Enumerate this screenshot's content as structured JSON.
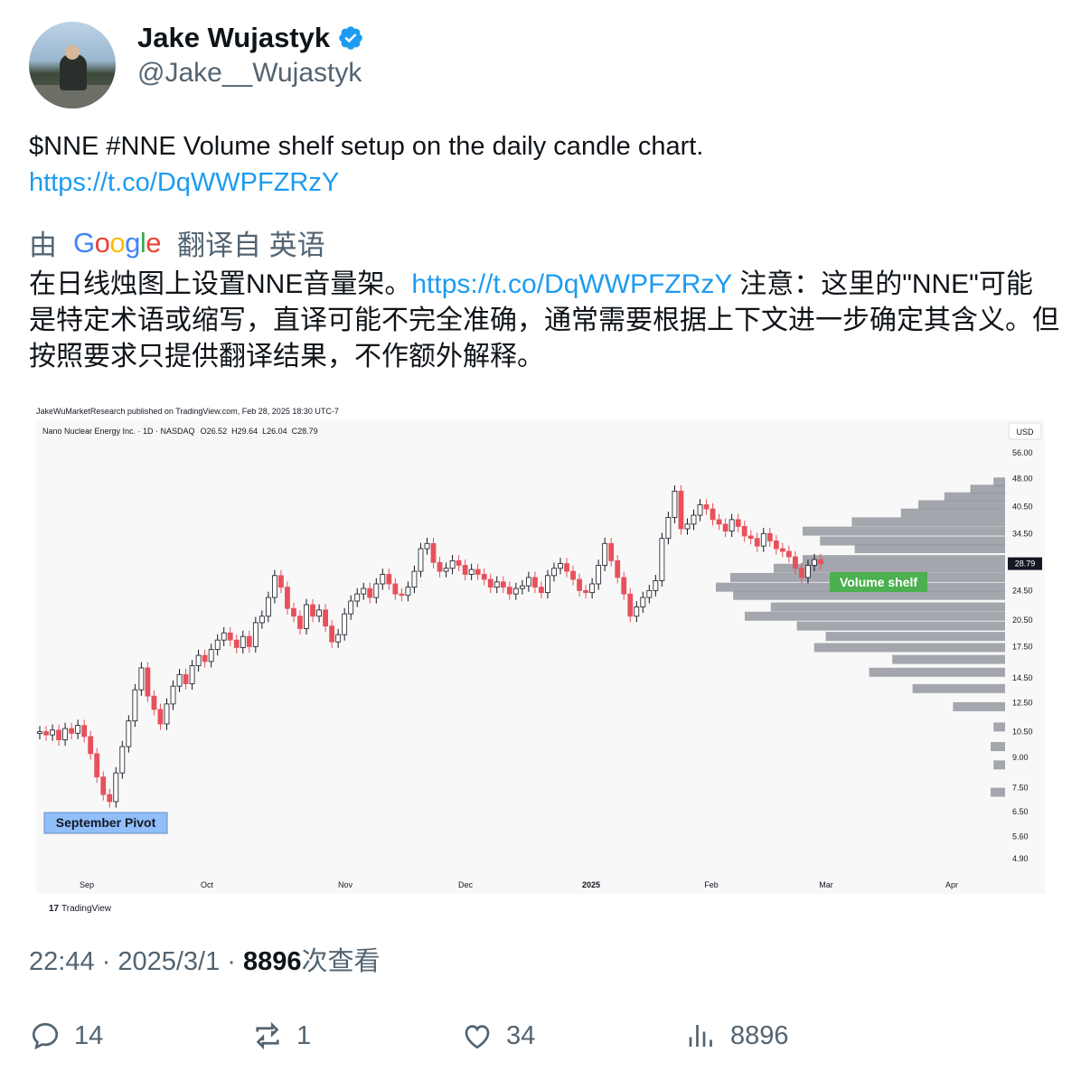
{
  "tweet": {
    "display_name": "Jake Wujastyk",
    "handle": "@Jake__Wujastyk",
    "text": "$NNE #NNE Volume shelf setup on the daily candle chart.",
    "link": "https://t.co/DqWWPFZRzY",
    "translation_prefix": "由",
    "translation_provider": "Google",
    "translation_suffix": "翻译自 英语",
    "translated_part1": "在日线烛图上设置NNE音量架。",
    "translated_link": "https://t.co/DqWWPFZRzY",
    "translated_part2": " 注意：这里的\"NNE\"可能是特定术语或缩写，直译可能不完全准确，通常需要根据上下文进一步确定其含义。但按照要求只提供翻译结果，不作额外解释。",
    "time": "22:44",
    "date": "2025/3/1",
    "views_count": "8896",
    "views_label": "次查看",
    "separator": " · "
  },
  "actions": {
    "replies": "14",
    "retweets": "1",
    "likes": "34",
    "views": "8896"
  },
  "icons": {
    "verified": "verified-badge-icon",
    "reply": "reply-icon",
    "retweet": "retweet-icon",
    "like": "heart-icon",
    "views": "analytics-icon"
  },
  "colors": {
    "link": "#1d9bf0",
    "verified": "#1d9bf0",
    "bull": "#ffffff",
    "bear": "#e8505b",
    "volume_bar": "#9598a1",
    "volume_label": "#4caf50",
    "pivot_label": "#90bff9"
  },
  "chart_data": {
    "type": "candlestick",
    "header": "JakeWuMarketResearch published on TradingView.com, Feb 28, 2025 18:30 UTC-7",
    "symbol_line": "Nano Nuclear Energy Inc. · 1D · NASDAQ",
    "ohlc": {
      "o": "O26.52",
      "h": "H29.64",
      "l": "L26.04",
      "c": "C28.79"
    },
    "currency": "USD",
    "price_ticks": [
      "56.00",
      "48.00",
      "40.50",
      "34.50",
      "24.50",
      "20.50",
      "17.50",
      "14.50",
      "12.50",
      "10.50",
      "9.00",
      "7.50",
      "6.50",
      "5.60",
      "4.90"
    ],
    "tick_values": [
      56.0,
      48.0,
      40.5,
      34.5,
      24.5,
      20.5,
      17.5,
      14.5,
      12.5,
      10.5,
      9.0,
      7.5,
      6.5,
      5.6,
      4.9
    ],
    "last_price": "28.79",
    "x_ticks": [
      "Sep",
      "Oct",
      "Nov",
      "Dec",
      "2025",
      "Feb",
      "Mar",
      "Apr"
    ],
    "y_scale": "log",
    "annotations": {
      "pivot": "September Pivot",
      "shelf": "Volume shelf"
    },
    "footer": "TradingView",
    "candles_close": [
      10.5,
      10.3,
      10.6,
      10.0,
      10.7,
      10.4,
      10.9,
      10.2,
      9.2,
      8.0,
      7.2,
      6.9,
      8.2,
      9.6,
      11.2,
      13.5,
      15.4,
      13.0,
      12.0,
      11.0,
      12.4,
      13.8,
      14.8,
      14.0,
      15.6,
      16.6,
      16.0,
      17.2,
      18.2,
      19.0,
      18.2,
      17.4,
      18.6,
      17.5,
      20.2,
      21.0,
      23.5,
      26.8,
      25.0,
      22.0,
      21.0,
      19.5,
      22.5,
      21.0,
      21.8,
      19.8,
      18.0,
      18.8,
      21.3,
      23.0,
      24.0,
      24.8,
      23.5,
      25.5,
      27.0,
      25.5,
      24.0,
      23.8,
      25.0,
      27.5,
      31.5,
      32.5,
      29.0,
      27.5,
      28.0,
      29.3,
      28.5,
      27.0,
      27.8,
      27.0,
      26.2,
      25.0,
      25.8,
      25.0,
      24.0,
      24.8,
      25.2,
      26.5,
      25.0,
      24.2,
      26.8,
      28.0,
      28.8,
      27.5,
      26.2,
      24.5,
      24.2,
      25.5,
      28.5,
      32.5,
      29.3,
      26.5,
      24.0,
      21.0,
      22.2,
      23.5,
      24.5,
      26.0,
      33.5,
      38.0,
      44.5,
      35.5,
      36.5,
      38.5,
      41.0,
      40.0,
      37.5,
      36.5,
      35.0,
      37.5,
      36.0,
      34.0,
      33.5,
      32.0,
      34.5,
      33.0,
      31.5,
      31.0,
      30.0,
      28.0,
      26.5,
      28.5,
      29.5,
      28.79
    ],
    "volume_profile": [
      {
        "price": 47.0,
        "volume": 0.04
      },
      {
        "price": 45.0,
        "volume": 0.12
      },
      {
        "price": 43.0,
        "volume": 0.21
      },
      {
        "price": 41.0,
        "volume": 0.3
      },
      {
        "price": 39.0,
        "volume": 0.36
      },
      {
        "price": 37.0,
        "volume": 0.53
      },
      {
        "price": 35.0,
        "volume": 0.7
      },
      {
        "price": 33.0,
        "volume": 0.64
      },
      {
        "price": 31.5,
        "volume": 0.52
      },
      {
        "price": 29.5,
        "volume": 0.7
      },
      {
        "price": 28.0,
        "volume": 0.8
      },
      {
        "price": 26.5,
        "volume": 0.95
      },
      {
        "price": 25.0,
        "volume": 1.0
      },
      {
        "price": 23.8,
        "volume": 0.94
      },
      {
        "price": 22.2,
        "volume": 0.81
      },
      {
        "price": 21.0,
        "volume": 0.9
      },
      {
        "price": 19.8,
        "volume": 0.72
      },
      {
        "price": 18.6,
        "volume": 0.62
      },
      {
        "price": 17.4,
        "volume": 0.66
      },
      {
        "price": 16.2,
        "volume": 0.39
      },
      {
        "price": 15.0,
        "volume": 0.47
      },
      {
        "price": 13.6,
        "volume": 0.32
      },
      {
        "price": 12.2,
        "volume": 0.18
      },
      {
        "price": 10.8,
        "volume": 0.04
      },
      {
        "price": 9.6,
        "volume": 0.05
      },
      {
        "price": 8.6,
        "volume": 0.04
      },
      {
        "price": 7.3,
        "volume": 0.05
      }
    ]
  }
}
